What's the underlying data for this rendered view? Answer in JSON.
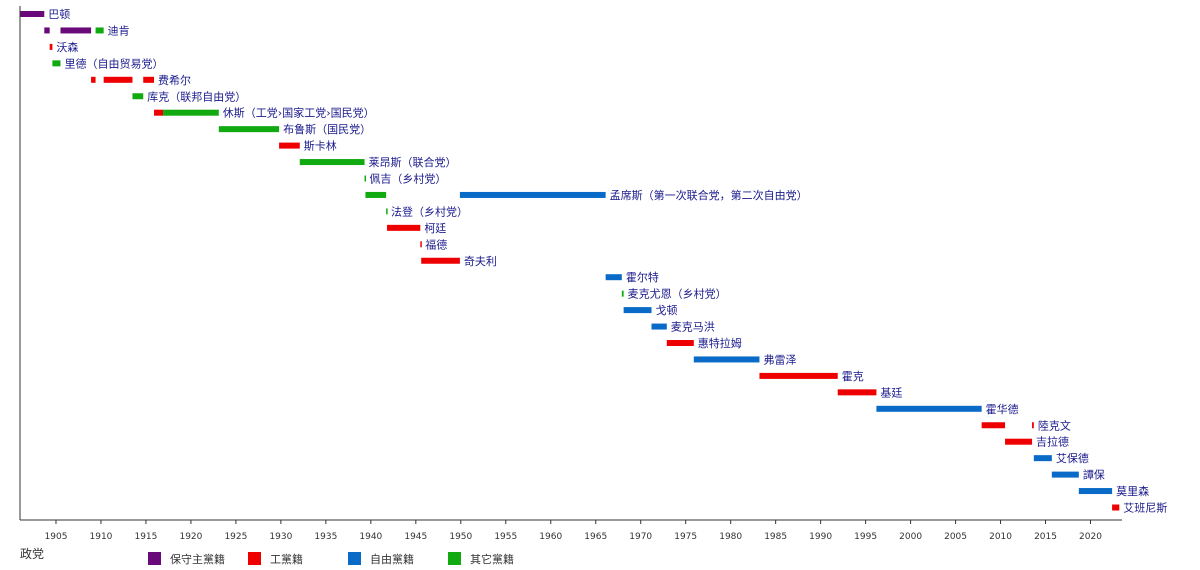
{
  "chart_data": {
    "type": "timeline",
    "legend_title": "政党",
    "legend_position": "bottom",
    "grid": false,
    "xlim": [
      1901,
      2023.5
    ],
    "x_ticks": [
      1905,
      1910,
      1915,
      1920,
      1925,
      1930,
      1935,
      1940,
      1945,
      1950,
      1955,
      1960,
      1965,
      1970,
      1975,
      1980,
      1985,
      1990,
      1995,
      2000,
      2005,
      2010,
      2015,
      2020
    ],
    "parties": [
      {
        "key": "conservative",
        "name": "保守主黨籍",
        "color": "#6a0a7a"
      },
      {
        "key": "labour",
        "name": "工黨籍",
        "color": "#ee0000"
      },
      {
        "key": "liberal",
        "name": "自由黨籍",
        "color": "#0a6ac8"
      },
      {
        "key": "other",
        "name": "其它黨籍",
        "color": "#11aa11"
      }
    ],
    "prime_ministers": [
      {
        "label": "巴顿",
        "terms": [
          {
            "start": 1901.0,
            "end": 1903.7,
            "party": "conservative"
          }
        ]
      },
      {
        "label": "迪肯",
        "terms": [
          {
            "start": 1903.7,
            "end": 1904.3,
            "party": "conservative"
          },
          {
            "start": 1905.5,
            "end": 1908.9,
            "party": "conservative"
          },
          {
            "start": 1909.4,
            "end": 1910.3,
            "party": "other"
          }
        ]
      },
      {
        "label": "沃森",
        "terms": [
          {
            "start": 1904.3,
            "end": 1904.6,
            "party": "labour"
          }
        ]
      },
      {
        "label": "里德（自由贸易党）",
        "terms": [
          {
            "start": 1904.6,
            "end": 1905.5,
            "party": "other"
          }
        ]
      },
      {
        "label": "费希尔",
        "terms": [
          {
            "start": 1908.9,
            "end": 1909.4,
            "party": "labour"
          },
          {
            "start": 1910.3,
            "end": 1913.5,
            "party": "labour"
          },
          {
            "start": 1914.7,
            "end": 1915.9,
            "party": "labour"
          }
        ]
      },
      {
        "label": "库克（联邦自由党）",
        "terms": [
          {
            "start": 1913.5,
            "end": 1914.7,
            "party": "other"
          }
        ]
      },
      {
        "label": "休斯（工党›国家工党›国民党）",
        "terms": [
          {
            "start": 1915.9,
            "end": 1916.9,
            "party": "labour"
          },
          {
            "start": 1916.9,
            "end": 1923.1,
            "party": "other"
          }
        ]
      },
      {
        "label": "布鲁斯（国民党）",
        "terms": [
          {
            "start": 1923.1,
            "end": 1929.8,
            "party": "other"
          }
        ]
      },
      {
        "label": "斯卡林",
        "terms": [
          {
            "start": 1929.8,
            "end": 1932.1,
            "party": "labour"
          }
        ]
      },
      {
        "label": "莱昂斯（联合党）",
        "terms": [
          {
            "start": 1932.1,
            "end": 1939.3,
            "party": "other"
          }
        ]
      },
      {
        "label": "佩吉（乡村党）",
        "terms": [
          {
            "start": 1939.3,
            "end": 1939.4,
            "party": "other"
          }
        ]
      },
      {
        "label": "孟席斯（第一次联合党，第二次自由党）",
        "terms": [
          {
            "start": 1939.4,
            "end": 1941.7,
            "party": "other"
          },
          {
            "start": 1949.9,
            "end": 1966.1,
            "party": "liberal"
          }
        ]
      },
      {
        "label": "法登（乡村党）",
        "terms": [
          {
            "start": 1941.7,
            "end": 1941.8,
            "party": "other"
          }
        ]
      },
      {
        "label": "柯廷",
        "terms": [
          {
            "start": 1941.8,
            "end": 1945.5,
            "party": "labour"
          }
        ]
      },
      {
        "label": "福德",
        "terms": [
          {
            "start": 1945.5,
            "end": 1945.6,
            "party": "labour"
          }
        ]
      },
      {
        "label": "奇夫利",
        "terms": [
          {
            "start": 1945.6,
            "end": 1949.9,
            "party": "labour"
          }
        ]
      },
      {
        "label": "霍尔特",
        "terms": [
          {
            "start": 1966.1,
            "end": 1967.9,
            "party": "liberal"
          }
        ]
      },
      {
        "label": "麦克尤恩（乡村党）",
        "terms": [
          {
            "start": 1967.9,
            "end": 1968.1,
            "party": "other"
          }
        ]
      },
      {
        "label": "戈顿",
        "terms": [
          {
            "start": 1968.1,
            "end": 1971.2,
            "party": "liberal"
          }
        ]
      },
      {
        "label": "麦克马洪",
        "terms": [
          {
            "start": 1971.2,
            "end": 1972.9,
            "party": "liberal"
          }
        ]
      },
      {
        "label": "惠特拉姆",
        "terms": [
          {
            "start": 1972.9,
            "end": 1975.9,
            "party": "labour"
          }
        ]
      },
      {
        "label": "弗雷泽",
        "terms": [
          {
            "start": 1975.9,
            "end": 1983.2,
            "party": "liberal"
          }
        ]
      },
      {
        "label": "霍克",
        "terms": [
          {
            "start": 1983.2,
            "end": 1991.9,
            "party": "labour"
          }
        ]
      },
      {
        "label": "基廷",
        "terms": [
          {
            "start": 1991.9,
            "end": 1996.2,
            "party": "labour"
          }
        ]
      },
      {
        "label": "霍华德",
        "terms": [
          {
            "start": 1996.2,
            "end": 2007.9,
            "party": "liberal"
          }
        ]
      },
      {
        "label": "陸克文",
        "terms": [
          {
            "start": 2007.9,
            "end": 2010.5,
            "party": "labour"
          },
          {
            "start": 2013.5,
            "end": 2013.7,
            "party": "labour"
          }
        ]
      },
      {
        "label": "吉拉德",
        "terms": [
          {
            "start": 2010.5,
            "end": 2013.5,
            "party": "labour"
          }
        ]
      },
      {
        "label": "艾保德",
        "terms": [
          {
            "start": 2013.7,
            "end": 2015.7,
            "party": "liberal"
          }
        ]
      },
      {
        "label": "譚保",
        "terms": [
          {
            "start": 2015.7,
            "end": 2018.7,
            "party": "liberal"
          }
        ]
      },
      {
        "label": "莫里森",
        "terms": [
          {
            "start": 2018.7,
            "end": 2022.4,
            "party": "liberal"
          }
        ]
      },
      {
        "label": "艾班尼斯",
        "terms": [
          {
            "start": 2022.4,
            "end": 2023.2,
            "party": "labour"
          }
        ]
      }
    ]
  }
}
